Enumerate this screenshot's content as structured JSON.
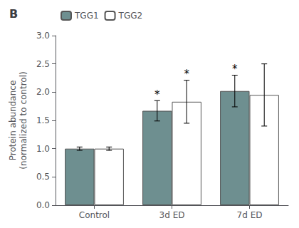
{
  "chart_data": {
    "type": "bar",
    "title": "B",
    "categories": [
      "Control",
      "3d ED",
      "7d ED"
    ],
    "series": [
      {
        "name": "TGG1",
        "color": "#6e8f90",
        "values": [
          1.0,
          1.67,
          2.02
        ],
        "errors": [
          0.03,
          0.18,
          0.28
        ],
        "annotations": [
          null,
          "*",
          "*"
        ]
      },
      {
        "name": "TGG2",
        "color": "#ffffff",
        "values": [
          1.0,
          1.83,
          1.95
        ],
        "errors": [
          0.03,
          0.38,
          0.55
        ],
        "annotations": [
          null,
          "*",
          null
        ]
      }
    ],
    "ylabel": "Protein abundance\n(normalized to control)",
    "ylim": [
      0.0,
      3.0
    ],
    "yticks": [
      {
        "value": 0.0,
        "label": "0.0"
      },
      0.5,
      {
        "value": 1.0,
        "label": "1.0"
      },
      1.5,
      {
        "value": 2.0,
        "label": "2.0"
      },
      2.5,
      {
        "value": 3.0,
        "label": "3.0"
      }
    ],
    "grid": false,
    "legend": "upper left"
  }
}
